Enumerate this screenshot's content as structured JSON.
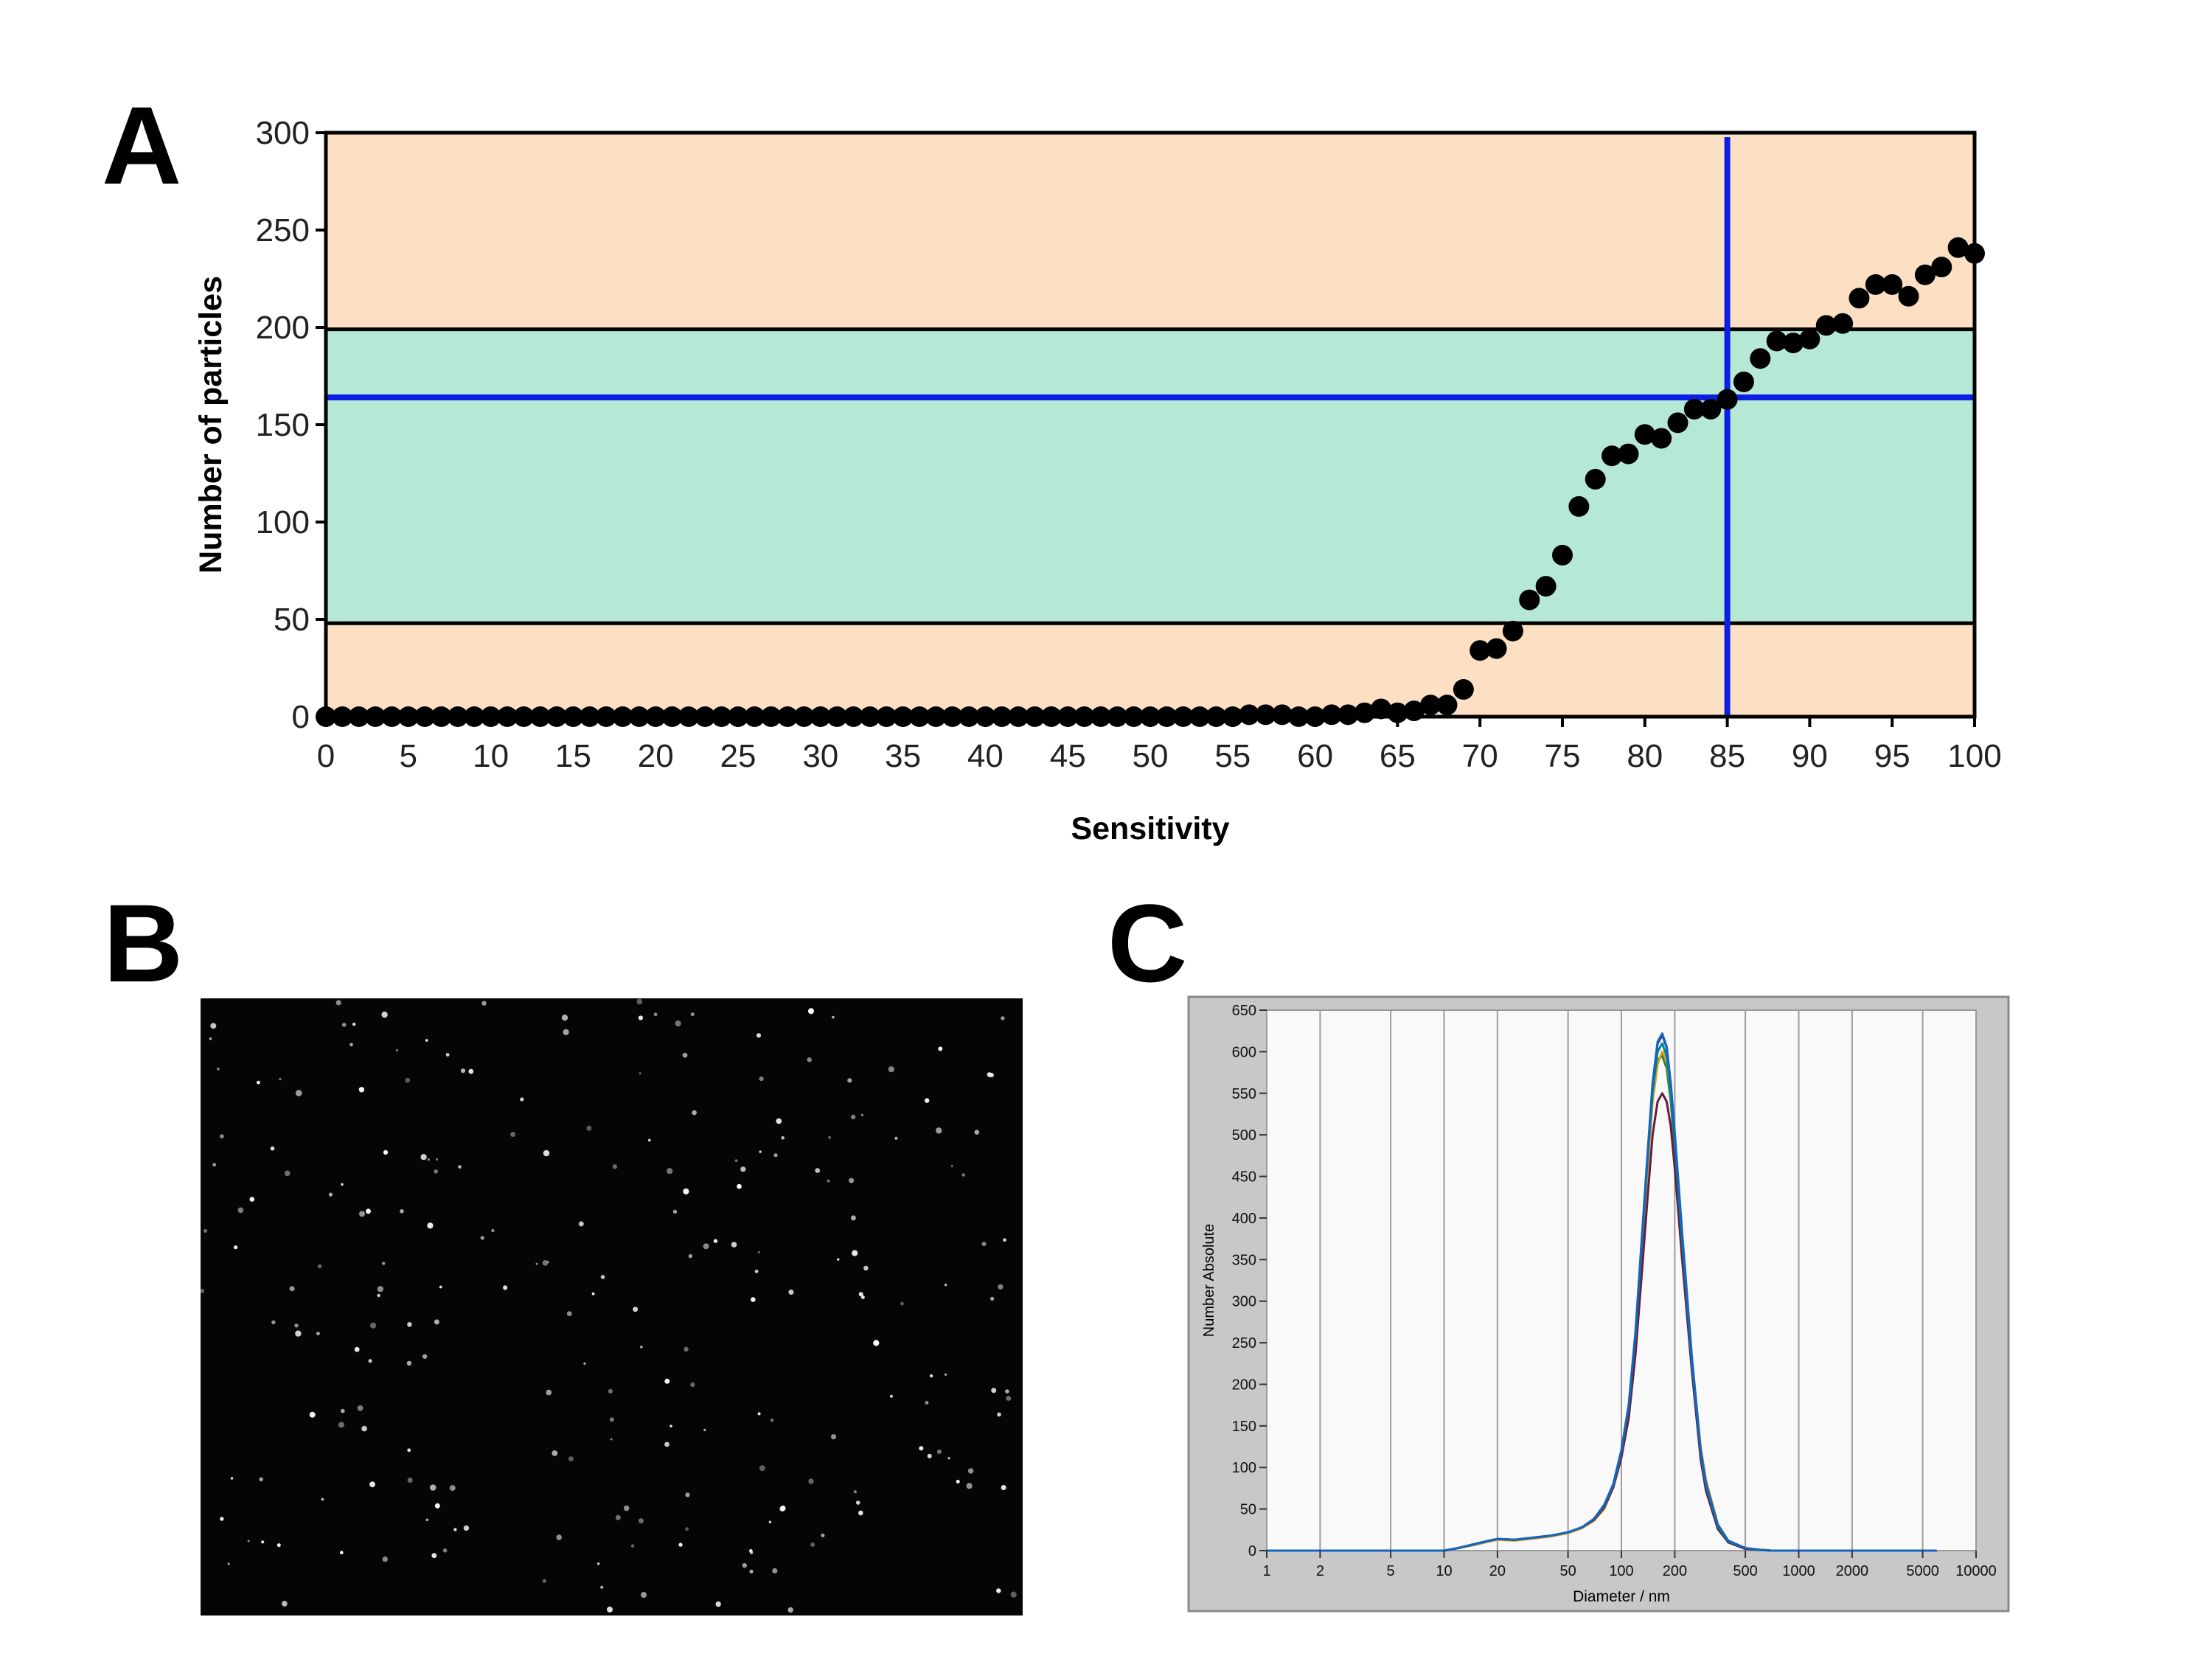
{
  "panels": {
    "a": "A",
    "b": "B",
    "c": "C"
  },
  "chart_data": [
    {
      "type": "scatter",
      "xlabel": "Sensitivity",
      "ylabel": "Number of particles",
      "xlim": [
        0,
        100
      ],
      "ylim": [
        0,
        300
      ],
      "x_ticks": [
        0,
        5,
        10,
        15,
        20,
        25,
        30,
        35,
        40,
        45,
        50,
        55,
        60,
        65,
        70,
        75,
        80,
        85,
        90,
        95,
        100
      ],
      "y_ticks": [
        0,
        50,
        100,
        150,
        200,
        250,
        300
      ],
      "bands": [
        {
          "from": 0,
          "to": 48,
          "color": "#fde0c3"
        },
        {
          "from": 48,
          "to": 199,
          "color": "#b5e8d5"
        },
        {
          "from": 199,
          "to": 300,
          "color": "#fde0c3"
        }
      ],
      "vline_x": 85,
      "hline_y": 164,
      "guide_color": "#0b1ee6",
      "marker_color": "#000000",
      "x": [
        0,
        1,
        2,
        3,
        4,
        5,
        6,
        7,
        8,
        9,
        10,
        11,
        12,
        13,
        14,
        15,
        16,
        17,
        18,
        19,
        20,
        21,
        22,
        23,
        24,
        25,
        26,
        27,
        28,
        29,
        30,
        31,
        32,
        33,
        34,
        35,
        36,
        37,
        38,
        39,
        40,
        41,
        42,
        43,
        44,
        45,
        46,
        47,
        48,
        49,
        50,
        51,
        52,
        53,
        54,
        55,
        56,
        57,
        58,
        59,
        60,
        61,
        62,
        63,
        64,
        65,
        66,
        67,
        68,
        69,
        70,
        71,
        72,
        73,
        74,
        75,
        76,
        77,
        78,
        79,
        80,
        81,
        82,
        83,
        84,
        85,
        86,
        87,
        88,
        89,
        90,
        91,
        92,
        93,
        94,
        95,
        96,
        97,
        98,
        99,
        100
      ],
      "y": [
        0,
        0,
        0,
        0,
        0,
        0,
        0,
        0,
        0,
        0,
        0,
        0,
        0,
        0,
        0,
        0,
        0,
        0,
        0,
        0,
        0,
        0,
        0,
        0,
        0,
        0,
        0,
        0,
        0,
        0,
        0,
        0,
        0,
        0,
        0,
        0,
        0,
        0,
        0,
        0,
        0,
        0,
        0,
        0,
        0,
        0,
        0,
        0,
        0,
        0,
        0,
        0,
        0,
        0,
        0,
        0,
        1,
        1,
        1,
        0,
        0,
        1,
        1,
        2,
        4,
        2,
        3,
        6,
        6,
        14,
        34,
        35,
        44,
        60,
        67,
        83,
        108,
        122,
        134,
        135,
        145,
        143,
        151,
        158,
        158,
        163,
        172,
        184,
        193,
        192,
        194,
        201,
        202,
        215,
        222,
        222,
        216,
        227,
        231,
        241,
        238
      ]
    },
    {
      "type": "line",
      "xlabel": "Diameter / nm",
      "ylabel": "Number Absolute",
      "xscale": "log",
      "xlim": [
        1,
        10000
      ],
      "ylim": [
        0,
        650
      ],
      "x_ticks": [
        1,
        2,
        5,
        10,
        20,
        50,
        100,
        200,
        500,
        1000,
        2000,
        5000,
        10000
      ],
      "y_ticks": [
        0,
        50,
        100,
        150,
        200,
        250,
        300,
        350,
        400,
        450,
        500,
        550,
        600,
        650
      ],
      "x": [
        1,
        2,
        5,
        10,
        12,
        15,
        18,
        20,
        25,
        30,
        40,
        50,
        60,
        70,
        80,
        90,
        100,
        110,
        120,
        130,
        140,
        150,
        160,
        170,
        180,
        190,
        200,
        220,
        250,
        280,
        300,
        350,
        400,
        500,
        600,
        700,
        800,
        1000,
        2000,
        5000,
        6000
      ],
      "series": [
        {
          "color": "#1a237e",
          "values": [
            0,
            0,
            0,
            0,
            3,
            8,
            12,
            14,
            13,
            15,
            18,
            22,
            28,
            38,
            55,
            80,
            120,
            175,
            260,
            370,
            470,
            560,
            610,
            620,
            605,
            560,
            500,
            380,
            230,
            120,
            80,
            30,
            12,
            3,
            1,
            0,
            0,
            0,
            0,
            0,
            0
          ]
        },
        {
          "color": "#2e7d32",
          "values": [
            0,
            0,
            0,
            0,
            3,
            8,
            12,
            14,
            13,
            15,
            18,
            22,
            28,
            37,
            52,
            78,
            118,
            172,
            255,
            360,
            460,
            545,
            590,
            595,
            580,
            540,
            480,
            365,
            220,
            115,
            75,
            28,
            10,
            2,
            1,
            0,
            0,
            0,
            0,
            0,
            0
          ]
        },
        {
          "color": "#d4a017",
          "values": [
            0,
            0,
            0,
            0,
            3,
            7,
            11,
            13,
            12,
            14,
            17,
            21,
            27,
            36,
            50,
            76,
            115,
            168,
            250,
            355,
            455,
            540,
            585,
            600,
            590,
            550,
            495,
            375,
            230,
            125,
            85,
            32,
            12,
            3,
            1,
            0,
            0,
            0,
            0,
            0,
            0
          ]
        },
        {
          "color": "#6a1b3a",
          "values": [
            0,
            0,
            0,
            0,
            3,
            8,
            12,
            14,
            13,
            15,
            18,
            22,
            28,
            37,
            52,
            76,
            112,
            160,
            235,
            330,
            420,
            500,
            540,
            550,
            540,
            510,
            460,
            350,
            215,
            110,
            72,
            26,
            10,
            2,
            1,
            0,
            0,
            0,
            0,
            0,
            0
          ]
        },
        {
          "color": "#00838f",
          "values": [
            0,
            0,
            0,
            0,
            3,
            8,
            12,
            14,
            13,
            15,
            18,
            22,
            28,
            38,
            54,
            79,
            119,
            174,
            258,
            365,
            465,
            552,
            600,
            610,
            595,
            552,
            490,
            372,
            225,
            118,
            78,
            29,
            11,
            3,
            1,
            0,
            0,
            0,
            0,
            0,
            0
          ]
        },
        {
          "color": "#1565c0",
          "values": [
            0,
            0,
            0,
            0,
            3,
            8,
            12,
            14,
            13,
            15,
            18,
            22,
            28,
            38,
            54,
            80,
            121,
            176,
            262,
            372,
            472,
            562,
            612,
            622,
            606,
            562,
            502,
            382,
            232,
            121,
            81,
            31,
            12,
            3,
            1,
            0,
            0,
            0,
            0,
            0,
            0
          ]
        }
      ]
    }
  ]
}
